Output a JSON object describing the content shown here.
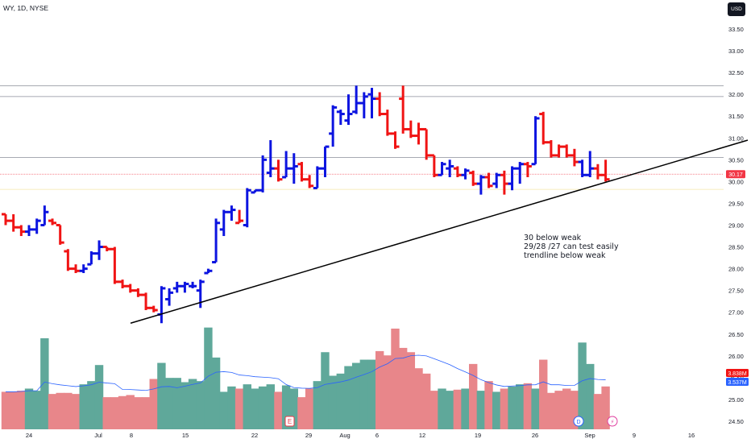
{
  "header": {
    "title": "WY, 1D, NYSE",
    "currency": "USD"
  },
  "colors": {
    "up": "#2962ff",
    "up_bar": "#0c14e0",
    "down": "#f01414",
    "vol_up": "#5fa89a",
    "vol_down": "#e8868a",
    "trendline": "#000000",
    "current_price": "#f23645",
    "volume_ma": "#2962ff"
  },
  "chart_data": {
    "type": "ohlc",
    "y_ticks": [
      "24.50",
      "25.00",
      "25.50",
      "26.00",
      "26.50",
      "27.00",
      "27.50",
      "28.00",
      "28.50",
      "29.00",
      "29.50",
      "30.00",
      "30.50",
      "31.00",
      "31.50",
      "32.00",
      "32.50",
      "33.00",
      "33.50"
    ],
    "x_ticks": [
      "24",
      "Jul",
      "8",
      "15",
      "22",
      "29",
      "Aug",
      "6",
      "12",
      "19",
      "26",
      "Sep",
      "9",
      "16"
    ],
    "ylim": [
      24.4,
      33.9
    ],
    "horizontal_levels": [
      32.2,
      31.95,
      30.55
    ],
    "current_price": {
      "value": 30.17,
      "label": "30.17"
    },
    "volume_labels": [
      "3.838M",
      "3.537M"
    ],
    "trendline": {
      "from": [
        "Jul 5",
        26.75
      ],
      "to": [
        "Sep 16+",
        30.95
      ]
    },
    "annotation": [
      "30 below weak",
      "29/28 /27 can test easily",
      "trendline below weak"
    ],
    "events": [
      "E",
      "D",
      "⚡"
    ],
    "bars": [
      {
        "o": 29.25,
        "h": 29.25,
        "l": 29.0,
        "c": 29.1,
        "d": "down",
        "v": 0.35
      },
      {
        "o": 29.1,
        "h": 29.25,
        "l": 28.85,
        "c": 28.95,
        "d": "down",
        "v": 0.35
      },
      {
        "o": 28.95,
        "h": 29.0,
        "l": 28.75,
        "c": 28.85,
        "d": "down",
        "v": 0.36
      },
      {
        "o": 28.85,
        "h": 29.0,
        "l": 28.75,
        "c": 28.9,
        "d": "up",
        "v": 0.38
      },
      {
        "o": 28.9,
        "h": 29.15,
        "l": 28.8,
        "c": 29.1,
        "d": "up",
        "v": 0.36
      },
      {
        "o": 29.0,
        "h": 29.45,
        "l": 29.0,
        "c": 29.3,
        "d": "up",
        "v": 0.85
      },
      {
        "o": 29.1,
        "h": 29.15,
        "l": 29.0,
        "c": 29.05,
        "d": "down",
        "v": 0.33
      },
      {
        "o": 29.0,
        "h": 29.0,
        "l": 28.55,
        "c": 28.6,
        "d": "down",
        "v": 0.34
      },
      {
        "o": 28.4,
        "h": 28.45,
        "l": 27.95,
        "c": 28.0,
        "d": "down",
        "v": 0.34
      },
      {
        "o": 28.0,
        "h": 28.1,
        "l": 27.9,
        "c": 27.95,
        "d": "down",
        "v": 0.33
      },
      {
        "o": 27.95,
        "h": 28.1,
        "l": 27.9,
        "c": 28.0,
        "d": "up",
        "v": 0.42
      },
      {
        "o": 28.1,
        "h": 28.4,
        "l": 28.1,
        "c": 28.35,
        "d": "up",
        "v": 0.45
      },
      {
        "o": 28.35,
        "h": 28.65,
        "l": 28.2,
        "c": 28.5,
        "d": "up",
        "v": 0.6
      },
      {
        "o": 28.5,
        "h": 28.5,
        "l": 28.4,
        "c": 28.45,
        "d": "down",
        "v": 0.3
      },
      {
        "o": 28.45,
        "h": 28.5,
        "l": 27.65,
        "c": 27.7,
        "d": "down",
        "v": 0.3
      },
      {
        "o": 27.7,
        "h": 27.75,
        "l": 27.55,
        "c": 27.6,
        "d": "down",
        "v": 0.31
      },
      {
        "o": 27.6,
        "h": 27.65,
        "l": 27.45,
        "c": 27.5,
        "d": "down",
        "v": 0.32
      },
      {
        "o": 27.5,
        "h": 27.55,
        "l": 27.35,
        "c": 27.4,
        "d": "down",
        "v": 0.3
      },
      {
        "o": 27.4,
        "h": 27.45,
        "l": 27.05,
        "c": 27.1,
        "d": "down",
        "v": 0.3
      },
      {
        "o": 27.1,
        "h": 27.15,
        "l": 27.0,
        "c": 27.05,
        "d": "down",
        "v": 0.47
      },
      {
        "o": 26.95,
        "h": 27.6,
        "l": 26.75,
        "c": 27.55,
        "d": "up",
        "v": 0.62
      },
      {
        "o": 27.3,
        "h": 27.55,
        "l": 27.15,
        "c": 27.45,
        "d": "up",
        "v": 0.48
      },
      {
        "o": 27.55,
        "h": 27.7,
        "l": 27.45,
        "c": 27.6,
        "d": "up",
        "v": 0.48
      },
      {
        "o": 27.6,
        "h": 27.7,
        "l": 27.45,
        "c": 27.65,
        "d": "up",
        "v": 0.44
      },
      {
        "o": 27.6,
        "h": 27.7,
        "l": 27.55,
        "c": 27.6,
        "d": "up",
        "v": 0.47
      },
      {
        "o": 27.5,
        "h": 27.75,
        "l": 27.1,
        "c": 27.7,
        "d": "up",
        "v": 0.45
      },
      {
        "o": 27.9,
        "h": 28.0,
        "l": 27.9,
        "c": 27.95,
        "d": "up",
        "v": 0.95
      },
      {
        "o": 28.15,
        "h": 29.15,
        "l": 28.15,
        "c": 29.05,
        "d": "up",
        "v": 0.67
      },
      {
        "o": 28.9,
        "h": 29.35,
        "l": 28.75,
        "c": 29.3,
        "d": "up",
        "v": 0.35
      },
      {
        "o": 29.3,
        "h": 29.45,
        "l": 29.1,
        "c": 29.35,
        "d": "up",
        "v": 0.4
      },
      {
        "o": 29.05,
        "h": 29.35,
        "l": 29.05,
        "c": 29.1,
        "d": "down",
        "v": 0.38
      },
      {
        "o": 29.0,
        "h": 29.85,
        "l": 28.95,
        "c": 29.8,
        "d": "up",
        "v": 0.42
      },
      {
        "o": 29.75,
        "h": 29.8,
        "l": 29.75,
        "c": 29.8,
        "d": "up",
        "v": 0.38
      },
      {
        "o": 29.8,
        "h": 30.6,
        "l": 29.75,
        "c": 30.5,
        "d": "up",
        "v": 0.4
      },
      {
        "o": 30.2,
        "h": 30.95,
        "l": 30.1,
        "c": 30.3,
        "d": "up",
        "v": 0.42
      },
      {
        "o": 30.3,
        "h": 30.5,
        "l": 30.0,
        "c": 30.05,
        "d": "down",
        "v": 0.35
      },
      {
        "o": 30.1,
        "h": 30.7,
        "l": 30.1,
        "c": 30.3,
        "d": "up",
        "v": 0.41
      },
      {
        "o": 30.3,
        "h": 30.65,
        "l": 29.95,
        "c": 30.35,
        "d": "up",
        "v": 0.38
      },
      {
        "o": 30.4,
        "h": 30.45,
        "l": 30.0,
        "c": 30.05,
        "d": "down",
        "v": 0.3
      },
      {
        "o": 30.05,
        "h": 30.15,
        "l": 29.85,
        "c": 29.9,
        "d": "down",
        "v": 0.38
      },
      {
        "o": 29.85,
        "h": 30.35,
        "l": 29.85,
        "c": 30.3,
        "d": "up",
        "v": 0.45
      },
      {
        "o": 30.3,
        "h": 30.8,
        "l": 30.1,
        "c": 30.8,
        "d": "up",
        "v": 0.72
      },
      {
        "o": 31.1,
        "h": 31.75,
        "l": 30.8,
        "c": 31.7,
        "d": "up",
        "v": 0.5
      },
      {
        "o": 31.6,
        "h": 31.65,
        "l": 31.3,
        "c": 31.55,
        "d": "up",
        "v": 0.52
      },
      {
        "o": 31.4,
        "h": 32.0,
        "l": 31.3,
        "c": 31.55,
        "d": "up",
        "v": 0.59
      },
      {
        "o": 31.6,
        "h": 32.2,
        "l": 31.55,
        "c": 31.8,
        "d": "up",
        "v": 0.62
      },
      {
        "o": 31.8,
        "h": 32.05,
        "l": 31.45,
        "c": 31.95,
        "d": "up",
        "v": 0.65
      },
      {
        "o": 32.0,
        "h": 32.15,
        "l": 31.45,
        "c": 31.9,
        "d": "up",
        "v": 0.65
      },
      {
        "o": 31.9,
        "h": 32.05,
        "l": 31.5,
        "c": 31.55,
        "d": "down",
        "v": 0.73
      },
      {
        "o": 31.55,
        "h": 31.65,
        "l": 31.05,
        "c": 31.1,
        "d": "down",
        "v": 0.69
      },
      {
        "o": 31.1,
        "h": 31.15,
        "l": 30.75,
        "c": 30.8,
        "d": "down",
        "v": 0.94
      },
      {
        "o": 31.9,
        "h": 32.2,
        "l": 31.1,
        "c": 31.2,
        "d": "down",
        "v": 0.76
      },
      {
        "o": 31.2,
        "h": 31.4,
        "l": 31.0,
        "c": 31.05,
        "d": "down",
        "v": 0.72
      },
      {
        "o": 31.05,
        "h": 31.35,
        "l": 30.85,
        "c": 31.2,
        "d": "down",
        "v": 0.57
      },
      {
        "o": 31.2,
        "h": 31.2,
        "l": 30.5,
        "c": 30.6,
        "d": "down",
        "v": 0.52
      },
      {
        "o": 30.6,
        "h": 30.6,
        "l": 30.1,
        "c": 30.15,
        "d": "down",
        "v": 0.36
      },
      {
        "o": 30.15,
        "h": 30.45,
        "l": 30.15,
        "c": 30.4,
        "d": "up",
        "v": 0.38
      },
      {
        "o": 30.3,
        "h": 30.5,
        "l": 30.1,
        "c": 30.35,
        "d": "up",
        "v": 0.36
      },
      {
        "o": 30.3,
        "h": 30.35,
        "l": 30.1,
        "c": 30.15,
        "d": "down",
        "v": 0.37
      },
      {
        "o": 30.15,
        "h": 30.3,
        "l": 30.05,
        "c": 30.25,
        "d": "up",
        "v": 0.38
      },
      {
        "o": 30.2,
        "h": 30.25,
        "l": 29.9,
        "c": 29.95,
        "d": "down",
        "v": 0.61
      },
      {
        "o": 29.95,
        "h": 30.15,
        "l": 29.7,
        "c": 30.1,
        "d": "up",
        "v": 0.36
      },
      {
        "o": 30.1,
        "h": 30.2,
        "l": 29.85,
        "c": 29.9,
        "d": "down",
        "v": 0.45
      },
      {
        "o": 29.95,
        "h": 30.2,
        "l": 29.85,
        "c": 30.15,
        "d": "up",
        "v": 0.35
      },
      {
        "o": 30.15,
        "h": 30.25,
        "l": 29.7,
        "c": 29.95,
        "d": "down",
        "v": 0.38
      },
      {
        "o": 29.95,
        "h": 30.35,
        "l": 29.8,
        "c": 30.3,
        "d": "up",
        "v": 0.4
      },
      {
        "o": 30.3,
        "h": 30.45,
        "l": 29.95,
        "c": 30.4,
        "d": "up",
        "v": 0.42
      },
      {
        "o": 30.4,
        "h": 30.45,
        "l": 30.1,
        "c": 30.35,
        "d": "down",
        "v": 0.43
      },
      {
        "o": 30.4,
        "h": 31.5,
        "l": 30.4,
        "c": 31.45,
        "d": "up",
        "v": 0.38
      },
      {
        "o": 31.55,
        "h": 31.6,
        "l": 30.85,
        "c": 30.9,
        "d": "down",
        "v": 0.65
      },
      {
        "o": 30.9,
        "h": 30.95,
        "l": 30.55,
        "c": 30.6,
        "d": "down",
        "v": 0.34
      },
      {
        "o": 30.6,
        "h": 30.85,
        "l": 30.55,
        "c": 30.8,
        "d": "down",
        "v": 0.36
      },
      {
        "o": 30.8,
        "h": 30.85,
        "l": 30.55,
        "c": 30.6,
        "d": "down",
        "v": 0.38
      },
      {
        "o": 30.6,
        "h": 30.75,
        "l": 30.35,
        "c": 30.45,
        "d": "down",
        "v": 0.36
      },
      {
        "o": 30.45,
        "h": 30.5,
        "l": 30.1,
        "c": 30.15,
        "d": "up",
        "v": 0.81
      },
      {
        "o": 30.15,
        "h": 30.7,
        "l": 30.1,
        "c": 30.3,
        "d": "up",
        "v": 0.61
      },
      {
        "o": 30.3,
        "h": 30.4,
        "l": 30.05,
        "c": 30.15,
        "d": "down",
        "v": 0.33
      },
      {
        "o": 30.15,
        "h": 30.5,
        "l": 30.0,
        "c": 30.05,
        "d": "down",
        "v": 0.4
      }
    ]
  }
}
